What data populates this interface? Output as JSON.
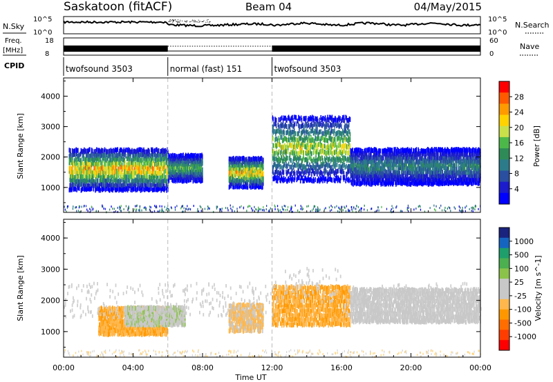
{
  "header": {
    "station": "Saskatoon (fitACF)",
    "beam": "Beam 04",
    "date": "04/May/2015"
  },
  "nsky_panel": {
    "left_label": "N.Sky",
    "right_label": "N.Search",
    "left_ticks": [
      "10^5",
      "10^0"
    ],
    "right_ticks": [
      "10^5",
      "10^0"
    ]
  },
  "freq_panel": {
    "left_label_1": "Freq.",
    "left_label_2": "[MHz]",
    "right_label": "Nave",
    "left_ticks": [
      "18",
      "8"
    ],
    "right_ticks": [
      "60",
      "0"
    ]
  },
  "cpid": {
    "label": "CPID",
    "segments": [
      {
        "name": "twofsound 3503",
        "start_h": 0,
        "end_h": 6
      },
      {
        "name": "normal (fast) 151",
        "start_h": 6,
        "end_h": 12
      },
      {
        "name": "twofsound 3503",
        "start_h": 12,
        "end_h": 24
      }
    ]
  },
  "power_colorbar": {
    "label": "Power [dB]",
    "ticks": [
      "28",
      "24",
      "20",
      "16",
      "12",
      "8",
      "4"
    ],
    "colors": [
      "#ff0000",
      "#ff5a00",
      "#ff9a00",
      "#ffd200",
      "#c8e04a",
      "#4cb84a",
      "#2e8b57",
      "#2c7b8a",
      "#2a4fa0",
      "#1c1ccc",
      "#0000ff"
    ]
  },
  "velocity_colorbar": {
    "label": "Velocity [m s^-1]",
    "ticks": [
      "1000",
      "500",
      "100",
      "25",
      "-25",
      "-100",
      "-500",
      "-1000"
    ],
    "colors": [
      "#1a237e",
      "#1565c0",
      "#1e9e6a",
      "#4caf50",
      "#8bc34a",
      "#c8c8c8",
      "#c8c8c8",
      "#ffb74d",
      "#ff9800",
      "#ff6d00",
      "#ff3d00",
      "#ff0000"
    ]
  },
  "chart_data": [
    {
      "type": "heatmap",
      "parameter": "Power",
      "units": "dB",
      "ylabel": "Slant Range [km]",
      "ylim": [
        180,
        4600
      ],
      "yticks": [
        1000,
        2000,
        3000,
        4000
      ],
      "xlim": [
        0,
        24
      ],
      "x_unit": "hours UT",
      "echo_bands": [
        {
          "start_h": 0.3,
          "end_h": 6.0,
          "range_low_km": 900,
          "range_high_km": 2300,
          "peak_power_db": 28
        },
        {
          "start_h": 6.0,
          "end_h": 8.0,
          "range_low_km": 1200,
          "range_high_km": 2100,
          "peak_power_db": 20
        },
        {
          "start_h": 9.5,
          "end_h": 11.5,
          "range_low_km": 1000,
          "range_high_km": 2000,
          "peak_power_db": 28
        },
        {
          "start_h": 12.0,
          "end_h": 16.5,
          "range_low_km": 1200,
          "range_high_km": 3400,
          "peak_power_db": 24
        },
        {
          "start_h": 16.5,
          "end_h": 24.0,
          "range_low_km": 1100,
          "range_high_km": 2300,
          "peak_power_db": 16
        }
      ]
    },
    {
      "type": "heatmap",
      "parameter": "Velocity",
      "units": "m s^-1",
      "ylabel": "Slant Range [km]",
      "xlabel": "Time UT",
      "ylim": [
        180,
        4600
      ],
      "yticks": [
        1000,
        2000,
        3000,
        4000
      ],
      "xlim": [
        0,
        24
      ],
      "xticks": [
        "00:00",
        "04:00",
        "08:00",
        "12:00",
        "16:00",
        "20:00",
        "00:00"
      ],
      "echo_bands": [
        {
          "start_h": 2.0,
          "end_h": 6.0,
          "range_low_km": 900,
          "range_high_km": 1800,
          "typical_velocity": -300
        },
        {
          "start_h": 3.5,
          "end_h": 7.0,
          "range_low_km": 1200,
          "range_high_km": 1800,
          "typical_velocity": 100
        },
        {
          "start_h": 9.5,
          "end_h": 11.5,
          "range_low_km": 1000,
          "range_high_km": 1900,
          "typical_velocity": -200
        },
        {
          "start_h": 12.0,
          "end_h": 16.5,
          "range_low_km": 1200,
          "range_high_km": 2500,
          "typical_velocity": -300
        },
        {
          "start_h": 16.5,
          "end_h": 24.0,
          "range_low_km": 1300,
          "range_high_km": 2400,
          "typical_velocity": 0
        }
      ]
    }
  ]
}
